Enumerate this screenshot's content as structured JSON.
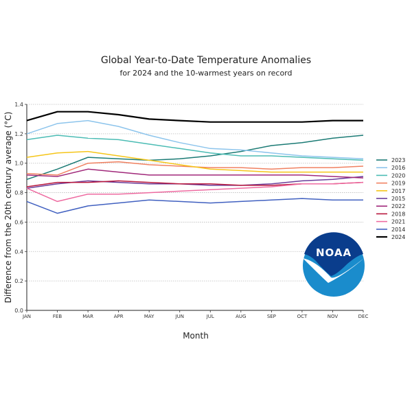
{
  "chart_data": {
    "type": "line",
    "title": "Global Year-to-Date Temperature Anomalies",
    "subtitle": "for 2024 and the 10-warmest years on record",
    "xlabel": "Month",
    "ylabel": "Difference from the 20th century average (°C)",
    "categories": [
      "JAN",
      "FEB",
      "MAR",
      "APR",
      "MAY",
      "JUN",
      "JUL",
      "AUG",
      "SEP",
      "OCT",
      "NOV",
      "DEC"
    ],
    "ylim": [
      0.0,
      1.4
    ],
    "yticks": [
      "0.0",
      "0.2",
      "0.4",
      "0.6",
      "0.8",
      "1.0",
      "1.2",
      "1.4"
    ],
    "ytick_values": [
      0.0,
      0.2,
      0.4,
      0.6,
      0.8,
      1.0,
      1.2,
      1.4
    ],
    "grid": "horizontal dotted",
    "legend_position": "right",
    "series": [
      {
        "name": "2023",
        "color": "#1a7a74",
        "values": [
          0.89,
          0.96,
          1.04,
          1.03,
          1.02,
          1.03,
          1.05,
          1.08,
          1.12,
          1.14,
          1.17,
          1.19
        ]
      },
      {
        "name": "2016",
        "color": "#8cc4ec",
        "values": [
          1.2,
          1.27,
          1.29,
          1.25,
          1.19,
          1.14,
          1.1,
          1.09,
          1.07,
          1.05,
          1.04,
          1.03
        ]
      },
      {
        "name": "2020",
        "color": "#4bbcb4",
        "values": [
          1.16,
          1.19,
          1.17,
          1.16,
          1.13,
          1.1,
          1.07,
          1.05,
          1.05,
          1.04,
          1.03,
          1.02
        ]
      },
      {
        "name": "2019",
        "color": "#f08060",
        "values": [
          0.93,
          0.92,
          1.0,
          1.01,
          0.99,
          0.98,
          0.97,
          0.97,
          0.96,
          0.97,
          0.97,
          0.98
        ]
      },
      {
        "name": "2017",
        "color": "#f5c518",
        "values": [
          1.04,
          1.07,
          1.08,
          1.05,
          1.02,
          0.99,
          0.96,
          0.95,
          0.94,
          0.94,
          0.94,
          0.94
        ]
      },
      {
        "name": "2015",
        "color": "#6a3d9a",
        "values": [
          0.83,
          0.86,
          0.88,
          0.87,
          0.86,
          0.86,
          0.85,
          0.85,
          0.86,
          0.88,
          0.89,
          0.91
        ]
      },
      {
        "name": "2022",
        "color": "#a0287a",
        "values": [
          0.92,
          0.91,
          0.96,
          0.94,
          0.92,
          0.92,
          0.92,
          0.92,
          0.92,
          0.92,
          0.91,
          0.9
        ]
      },
      {
        "name": "2018",
        "color": "#b8163c",
        "values": [
          0.84,
          0.87,
          0.87,
          0.88,
          0.87,
          0.86,
          0.86,
          0.85,
          0.85,
          0.86,
          0.86,
          0.87
        ]
      },
      {
        "name": "2021",
        "color": "#ee6aa0",
        "values": [
          0.83,
          0.74,
          0.79,
          0.79,
          0.8,
          0.81,
          0.82,
          0.83,
          0.84,
          0.86,
          0.86,
          0.87
        ]
      },
      {
        "name": "2014",
        "color": "#4060c0",
        "values": [
          0.74,
          0.66,
          0.71,
          0.73,
          0.75,
          0.74,
          0.73,
          0.74,
          0.75,
          0.76,
          0.75,
          0.75
        ]
      },
      {
        "name": "2024",
        "color": "#000000",
        "values": [
          1.29,
          1.35,
          1.35,
          1.33,
          1.3,
          1.29,
          1.28,
          1.28,
          1.28,
          1.28,
          1.29,
          1.29
        ]
      }
    ]
  },
  "logo": {
    "text": "NOAA",
    "dark_color": "#0a3d8c",
    "light_color": "#1a8ccc"
  }
}
